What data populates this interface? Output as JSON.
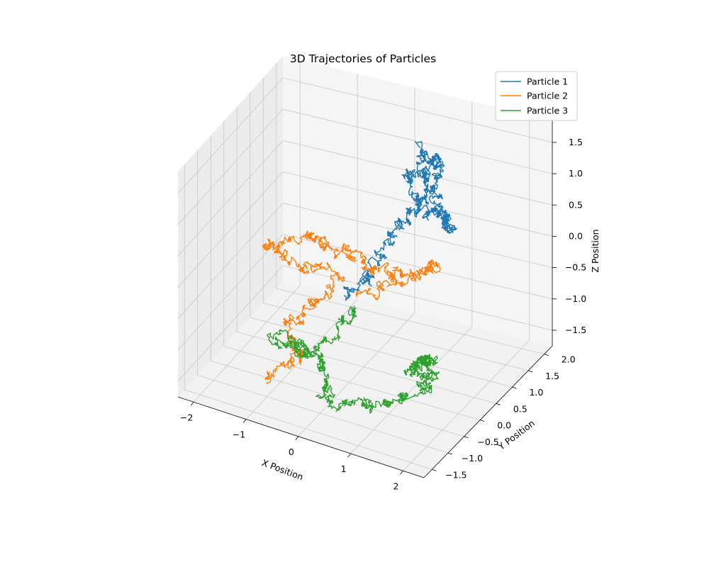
{
  "chart_data": {
    "type": "line",
    "projection": "3d",
    "title": "3D Trajectories of Particles",
    "xlabel": "X Position",
    "ylabel": "Y Position",
    "zlabel": "Z Position",
    "xlim": [
      -2.3,
      2.4
    ],
    "ylim": [
      -1.75,
      2.25
    ],
    "zlim": [
      -1.75,
      1.85
    ],
    "x_ticks": [
      -2,
      -1,
      0,
      1,
      2
    ],
    "y_ticks": [
      -1.5,
      -1.0,
      -0.5,
      0.0,
      0.5,
      1.0,
      1.5,
      2.0
    ],
    "z_ticks": [
      -1.5,
      -1.0,
      -0.5,
      0.0,
      0.5,
      1.0,
      1.5
    ],
    "x_tick_labels": [
      "−2",
      "−1",
      "0",
      "1",
      "2"
    ],
    "y_tick_labels": [
      "−1.5",
      "−1.0",
      "−0.5",
      "0.0",
      "0.5",
      "1.0",
      "1.5",
      "2.0"
    ],
    "z_tick_labels": [
      "−1.5",
      "−1.0",
      "−0.5",
      "0.0",
      "0.5",
      "1.0",
      "1.5"
    ],
    "grid": true,
    "legend_position": "top-right",
    "series": [
      {
        "name": "Particle 1",
        "color": "#1f77b4",
        "waypoints": [
          [
            0.05,
            0.0,
            -0.35
          ],
          [
            0.3,
            0.3,
            -0.05
          ],
          [
            0.55,
            0.6,
            0.35
          ],
          [
            0.75,
            0.9,
            0.75
          ],
          [
            1.0,
            1.1,
            1.0
          ],
          [
            1.15,
            1.3,
            1.25
          ],
          [
            1.05,
            1.5,
            1.5
          ],
          [
            0.75,
            1.6,
            1.3
          ],
          [
            0.55,
            1.4,
            1.05
          ],
          [
            0.85,
            1.2,
            0.85
          ],
          [
            1.3,
            1.1,
            0.8
          ],
          [
            1.6,
            1.0,
            0.7
          ],
          [
            1.35,
            0.9,
            0.95
          ],
          [
            1.0,
            1.2,
            1.2
          ],
          [
            0.7,
            1.5,
            1.55
          ]
        ]
      },
      {
        "name": "Particle 2",
        "color": "#ff7f0e",
        "waypoints": [
          [
            -1.0,
            -1.0,
            -1.5
          ],
          [
            -0.6,
            -0.6,
            -1.15
          ],
          [
            -0.9,
            -0.4,
            -0.9
          ],
          [
            -0.6,
            0.0,
            -0.6
          ],
          [
            -0.3,
            0.3,
            -0.2
          ],
          [
            -0.8,
            -0.3,
            0.1
          ],
          [
            -1.25,
            -0.5,
            0.35
          ],
          [
            -0.7,
            -0.1,
            0.55
          ],
          [
            -0.4,
            0.2,
            0.3
          ],
          [
            -0.05,
            0.45,
            0.05
          ],
          [
            0.45,
            0.55,
            -0.1
          ],
          [
            0.95,
            0.75,
            -0.05
          ],
          [
            1.25,
            1.0,
            0.1
          ],
          [
            0.7,
            0.6,
            -0.15
          ],
          [
            0.2,
            0.25,
            -0.3
          ]
        ]
      },
      {
        "name": "Particle 3",
        "color": "#2ca02c",
        "waypoints": [
          [
            0.2,
            0.0,
            -0.45
          ],
          [
            0.05,
            -0.4,
            -0.75
          ],
          [
            -0.45,
            -0.8,
            -0.95
          ],
          [
            -0.9,
            -0.9,
            -0.8
          ],
          [
            -0.45,
            -0.5,
            -1.05
          ],
          [
            -0.1,
            -0.6,
            -1.25
          ],
          [
            0.15,
            -0.9,
            -1.55
          ],
          [
            0.6,
            -0.7,
            -1.65
          ],
          [
            1.05,
            -0.4,
            -1.5
          ],
          [
            1.55,
            -0.3,
            -1.35
          ],
          [
            1.75,
            -0.2,
            -1.05
          ],
          [
            1.55,
            0.1,
            -0.9
          ],
          [
            1.3,
            0.3,
            -1.15
          ],
          [
            1.1,
            0.45,
            -1.45
          ],
          [
            1.4,
            0.6,
            -1.55
          ]
        ]
      }
    ]
  }
}
